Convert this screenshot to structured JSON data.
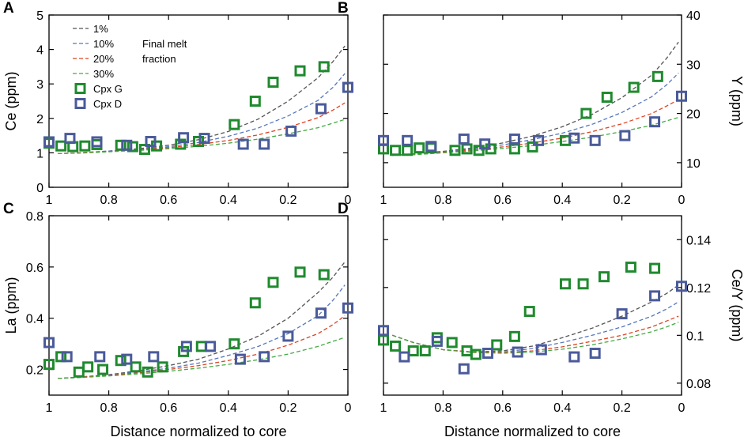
{
  "chart_data": [
    {
      "panel": "A",
      "type": "scatter",
      "xlabel": "",
      "xlim": [
        1,
        0
      ],
      "xticks": [
        1,
        0.8,
        0.6,
        0.4,
        0.2,
        0
      ],
      "xtick_labels": [
        "1",
        "0.8",
        "0.6",
        "0.4",
        "0.2",
        "0"
      ],
      "y_axis": "left",
      "ylabel": "Ce (ppm)",
      "ylim": [
        0,
        5
      ],
      "yticks": [
        0,
        1,
        2,
        3,
        4,
        5
      ],
      "ytick_labels": [
        "0",
        "1",
        "2",
        "3",
        "4",
        "5"
      ],
      "legend": {
        "placement": "top-left",
        "lines": [
          "1%",
          "10%",
          "20%",
          "30%"
        ],
        "line_note": [
          "Final melt",
          "fraction"
        ],
        "markers": [
          "Cpx G",
          "Cpx D"
        ]
      },
      "series": [
        {
          "name": "1%",
          "kind": "line",
          "color": "#555555",
          "x": [
            0.97,
            0.9,
            0.8,
            0.7,
            0.6,
            0.5,
            0.4,
            0.3,
            0.2,
            0.1,
            0.05,
            0.01
          ],
          "y": [
            0.98,
            1.0,
            1.05,
            1.12,
            1.22,
            1.38,
            1.62,
            1.98,
            2.5,
            3.18,
            3.65,
            4.1
          ]
        },
        {
          "name": "10%",
          "kind": "line",
          "color": "#5577bb",
          "x": [
            0.97,
            0.9,
            0.8,
            0.7,
            0.6,
            0.5,
            0.4,
            0.3,
            0.2,
            0.1,
            0.05,
            0.01
          ],
          "y": [
            0.98,
            1.0,
            1.05,
            1.1,
            1.18,
            1.3,
            1.48,
            1.72,
            2.07,
            2.52,
            2.9,
            3.3
          ]
        },
        {
          "name": "20%",
          "kind": "line",
          "color": "#dd4422",
          "x": [
            0.97,
            0.9,
            0.8,
            0.7,
            0.6,
            0.5,
            0.4,
            0.3,
            0.2,
            0.1,
            0.05,
            0.01
          ],
          "y": [
            0.98,
            1.0,
            1.04,
            1.09,
            1.15,
            1.24,
            1.36,
            1.52,
            1.74,
            2.02,
            2.24,
            2.45
          ]
        },
        {
          "name": "30%",
          "kind": "line",
          "color": "#44aa44",
          "x": [
            0.97,
            0.9,
            0.8,
            0.7,
            0.6,
            0.5,
            0.4,
            0.3,
            0.2,
            0.1,
            0.05,
            0.01
          ],
          "y": [
            0.98,
            0.99,
            1.03,
            1.07,
            1.12,
            1.19,
            1.28,
            1.4,
            1.55,
            1.73,
            1.86,
            1.97
          ]
        },
        {
          "name": "Cpx G",
          "kind": "marker",
          "color": "#1f8a2e",
          "x": [
            1.0,
            0.96,
            0.92,
            0.88,
            0.84,
            0.76,
            0.72,
            0.68,
            0.64,
            0.56,
            0.5,
            0.38,
            0.31,
            0.25,
            0.16,
            0.08
          ],
          "y": [
            1.28,
            1.2,
            1.18,
            1.2,
            1.24,
            1.22,
            1.18,
            1.1,
            1.2,
            1.25,
            1.33,
            1.82,
            2.5,
            3.05,
            3.38,
            3.5
          ]
        },
        {
          "name": "Cpx D",
          "kind": "marker",
          "color": "#4a5a9a",
          "x": [
            1.0,
            0.93,
            0.84,
            0.74,
            0.66,
            0.55,
            0.48,
            0.35,
            0.28,
            0.19,
            0.09,
            0.0
          ],
          "y": [
            1.32,
            1.42,
            1.32,
            1.22,
            1.33,
            1.44,
            1.42,
            1.25,
            1.25,
            1.63,
            2.28,
            2.9
          ]
        }
      ]
    },
    {
      "panel": "B",
      "type": "scatter",
      "xlabel": "",
      "xlim": [
        1,
        0
      ],
      "xticks": [
        1,
        0.8,
        0.6,
        0.4,
        0.2,
        0
      ],
      "xtick_labels": [
        "1",
        "0.8",
        "0.6",
        "0.4",
        "0.2",
        "0"
      ],
      "y_axis": "right",
      "ylabel": "Y (ppm)",
      "ylim": [
        5,
        40
      ],
      "yticks": [
        10,
        20,
        30,
        40
      ],
      "ytick_labels": [
        "10",
        "20",
        "30",
        "40"
      ],
      "series": [
        {
          "name": "1%",
          "kind": "line",
          "color": "#555555",
          "x": [
            0.97,
            0.9,
            0.8,
            0.7,
            0.6,
            0.5,
            0.4,
            0.3,
            0.2,
            0.1,
            0.05,
            0.01
          ],
          "y": [
            11.5,
            11.8,
            12.3,
            13.0,
            14.0,
            15.4,
            17.3,
            19.8,
            23.2,
            27.8,
            31.2,
            34.5
          ]
        },
        {
          "name": "10%",
          "kind": "line",
          "color": "#5577bb",
          "x": [
            0.97,
            0.9,
            0.8,
            0.7,
            0.6,
            0.5,
            0.4,
            0.3,
            0.2,
            0.1,
            0.05,
            0.01
          ],
          "y": [
            11.5,
            11.8,
            12.2,
            12.8,
            13.6,
            14.7,
            16.0,
            17.8,
            20.2,
            23.4,
            25.8,
            28.2
          ]
        },
        {
          "name": "20%",
          "kind": "line",
          "color": "#dd4422",
          "x": [
            0.97,
            0.9,
            0.8,
            0.7,
            0.6,
            0.5,
            0.4,
            0.3,
            0.2,
            0.1,
            0.05,
            0.01
          ],
          "y": [
            11.5,
            11.7,
            12.1,
            12.6,
            13.2,
            14.0,
            15.0,
            16.3,
            17.9,
            20.0,
            21.5,
            22.8
          ]
        },
        {
          "name": "30%",
          "kind": "line",
          "color": "#44aa44",
          "x": [
            0.97,
            0.9,
            0.8,
            0.7,
            0.6,
            0.5,
            0.4,
            0.3,
            0.2,
            0.1,
            0.05,
            0.01
          ],
          "y": [
            11.5,
            11.6,
            12.0,
            12.4,
            12.9,
            13.5,
            14.3,
            15.2,
            16.3,
            17.6,
            18.5,
            19.2
          ]
        },
        {
          "name": "Cpx G",
          "kind": "marker",
          "color": "#1f8a2e",
          "x": [
            1.0,
            0.96,
            0.92,
            0.88,
            0.84,
            0.76,
            0.72,
            0.68,
            0.64,
            0.56,
            0.5,
            0.39,
            0.32,
            0.25,
            0.16,
            0.08
          ],
          "y": [
            12.8,
            12.5,
            12.5,
            13.0,
            13.0,
            12.5,
            12.8,
            12.5,
            12.8,
            12.8,
            13.2,
            14.5,
            20.0,
            23.3,
            25.3,
            27.5
          ]
        },
        {
          "name": "Cpx D",
          "kind": "marker",
          "color": "#4a5a9a",
          "x": [
            1.0,
            0.92,
            0.84,
            0.73,
            0.66,
            0.56,
            0.48,
            0.36,
            0.29,
            0.19,
            0.09,
            0.0
          ],
          "y": [
            14.5,
            14.5,
            13.3,
            14.8,
            13.8,
            14.8,
            14.5,
            15.0,
            14.5,
            15.5,
            18.3,
            23.5
          ]
        }
      ]
    },
    {
      "panel": "C",
      "type": "scatter",
      "xlabel": "Distance normalized to core",
      "xlim": [
        1,
        0
      ],
      "xticks": [
        1,
        0.8,
        0.6,
        0.4,
        0.2,
        0
      ],
      "xtick_labels": [
        "1",
        "0.8",
        "0.6",
        "0.4",
        "0.2",
        "0"
      ],
      "y_axis": "left",
      "ylabel": "La (ppm)",
      "ylim": [
        0.1,
        0.8
      ],
      "yticks": [
        0.2,
        0.4,
        0.6,
        0.8
      ],
      "ytick_labels": [
        "0.2",
        "0.4",
        "0.6",
        "0.8"
      ],
      "series": [
        {
          "name": "1%",
          "kind": "line",
          "color": "#555555",
          "x": [
            0.97,
            0.9,
            0.8,
            0.7,
            0.6,
            0.5,
            0.4,
            0.3,
            0.2,
            0.1,
            0.05,
            0.01
          ],
          "y": [
            0.165,
            0.17,
            0.18,
            0.195,
            0.215,
            0.24,
            0.28,
            0.33,
            0.4,
            0.5,
            0.56,
            0.62
          ]
        },
        {
          "name": "10%",
          "kind": "line",
          "color": "#5577bb",
          "x": [
            0.97,
            0.9,
            0.8,
            0.7,
            0.6,
            0.5,
            0.4,
            0.3,
            0.2,
            0.1,
            0.05,
            0.01
          ],
          "y": [
            0.165,
            0.17,
            0.18,
            0.19,
            0.205,
            0.225,
            0.255,
            0.29,
            0.34,
            0.41,
            0.47,
            0.53
          ]
        },
        {
          "name": "20%",
          "kind": "line",
          "color": "#dd4422",
          "x": [
            0.97,
            0.9,
            0.8,
            0.7,
            0.6,
            0.5,
            0.4,
            0.3,
            0.2,
            0.1,
            0.05,
            0.01
          ],
          "y": [
            0.165,
            0.17,
            0.177,
            0.187,
            0.2,
            0.215,
            0.235,
            0.26,
            0.295,
            0.34,
            0.375,
            0.41
          ]
        },
        {
          "name": "30%",
          "kind": "line",
          "color": "#44aa44",
          "x": [
            0.97,
            0.9,
            0.8,
            0.7,
            0.6,
            0.5,
            0.4,
            0.3,
            0.2,
            0.1,
            0.05,
            0.01
          ],
          "y": [
            0.165,
            0.168,
            0.175,
            0.183,
            0.193,
            0.205,
            0.22,
            0.238,
            0.26,
            0.29,
            0.31,
            0.325
          ]
        },
        {
          "name": "Cpx G",
          "kind": "marker",
          "color": "#1f8a2e",
          "x": [
            1.0,
            0.96,
            0.9,
            0.87,
            0.82,
            0.76,
            0.71,
            0.67,
            0.62,
            0.55,
            0.49,
            0.38,
            0.31,
            0.25,
            0.16,
            0.08
          ],
          "y": [
            0.22,
            0.25,
            0.19,
            0.21,
            0.2,
            0.235,
            0.21,
            0.19,
            0.21,
            0.27,
            0.29,
            0.3,
            0.46,
            0.54,
            0.58,
            0.57
          ]
        },
        {
          "name": "Cpx D",
          "kind": "marker",
          "color": "#4a5a9a",
          "x": [
            1.0,
            0.94,
            0.83,
            0.74,
            0.65,
            0.54,
            0.46,
            0.36,
            0.28,
            0.2,
            0.09,
            0.0
          ],
          "y": [
            0.305,
            0.25,
            0.25,
            0.24,
            0.25,
            0.29,
            0.29,
            0.24,
            0.25,
            0.33,
            0.42,
            0.44
          ]
        }
      ]
    },
    {
      "panel": "D",
      "type": "scatter",
      "xlabel": "Distance normalized to core",
      "xlim": [
        1,
        0
      ],
      "xticks": [
        1,
        0.8,
        0.6,
        0.4,
        0.2,
        0
      ],
      "xtick_labels": [
        "1",
        "0.8",
        "0.6",
        "0.4",
        "0.2",
        "0"
      ],
      "y_axis": "right",
      "ylabel": "Ce/Y (ppm)",
      "ylim": [
        0.075,
        0.15
      ],
      "yticks": [
        0.08,
        0.1,
        0.12,
        0.14
      ],
      "ytick_labels": [
        "0.08",
        "0.1",
        "0.12",
        "0.14"
      ],
      "series": [
        {
          "name": "1%",
          "kind": "line",
          "color": "#555555",
          "x": [
            0.97,
            0.9,
            0.8,
            0.7,
            0.6,
            0.5,
            0.4,
            0.3,
            0.2,
            0.1,
            0.05,
            0.01
          ],
          "y": [
            0.1,
            0.097,
            0.094,
            0.093,
            0.0935,
            0.0955,
            0.099,
            0.103,
            0.108,
            0.114,
            0.1175,
            0.121
          ]
        },
        {
          "name": "10%",
          "kind": "line",
          "color": "#5577bb",
          "x": [
            0.97,
            0.9,
            0.8,
            0.7,
            0.6,
            0.5,
            0.4,
            0.3,
            0.2,
            0.1,
            0.05,
            0.01
          ],
          "y": [
            0.1,
            0.097,
            0.094,
            0.093,
            0.093,
            0.0945,
            0.097,
            0.1,
            0.1035,
            0.108,
            0.111,
            0.114
          ]
        },
        {
          "name": "20%",
          "kind": "line",
          "color": "#dd4422",
          "x": [
            0.97,
            0.9,
            0.8,
            0.7,
            0.6,
            0.5,
            0.4,
            0.3,
            0.2,
            0.1,
            0.05,
            0.01
          ],
          "y": [
            0.1,
            0.097,
            0.094,
            0.093,
            0.0928,
            0.0935,
            0.0952,
            0.0975,
            0.1,
            0.1035,
            0.106,
            0.108
          ]
        },
        {
          "name": "30%",
          "kind": "line",
          "color": "#44aa44",
          "x": [
            0.97,
            0.9,
            0.8,
            0.7,
            0.6,
            0.5,
            0.4,
            0.3,
            0.2,
            0.1,
            0.05,
            0.01
          ],
          "y": [
            0.1,
            0.097,
            0.094,
            0.0928,
            0.0925,
            0.093,
            0.0942,
            0.096,
            0.0985,
            0.1015,
            0.1035,
            0.1055
          ]
        },
        {
          "name": "Cpx G",
          "kind": "marker",
          "color": "#1f8a2e",
          "x": [
            1.0,
            0.96,
            0.9,
            0.86,
            0.82,
            0.77,
            0.72,
            0.69,
            0.62,
            0.56,
            0.51,
            0.39,
            0.33,
            0.26,
            0.17,
            0.09
          ],
          "y": [
            0.098,
            0.0955,
            0.0935,
            0.0935,
            0.099,
            0.097,
            0.0935,
            0.092,
            0.096,
            0.0995,
            0.11,
            0.1215,
            0.1215,
            0.1245,
            0.1285,
            0.128
          ]
        },
        {
          "name": "Cpx D",
          "kind": "marker",
          "color": "#4a5a9a",
          "x": [
            1.0,
            0.93,
            0.82,
            0.73,
            0.65,
            0.55,
            0.47,
            0.36,
            0.29,
            0.2,
            0.09,
            0.0
          ],
          "y": [
            0.102,
            0.091,
            0.0975,
            0.086,
            0.0925,
            0.093,
            0.094,
            0.091,
            0.0925,
            0.109,
            0.1165,
            0.1205
          ]
        }
      ]
    }
  ]
}
